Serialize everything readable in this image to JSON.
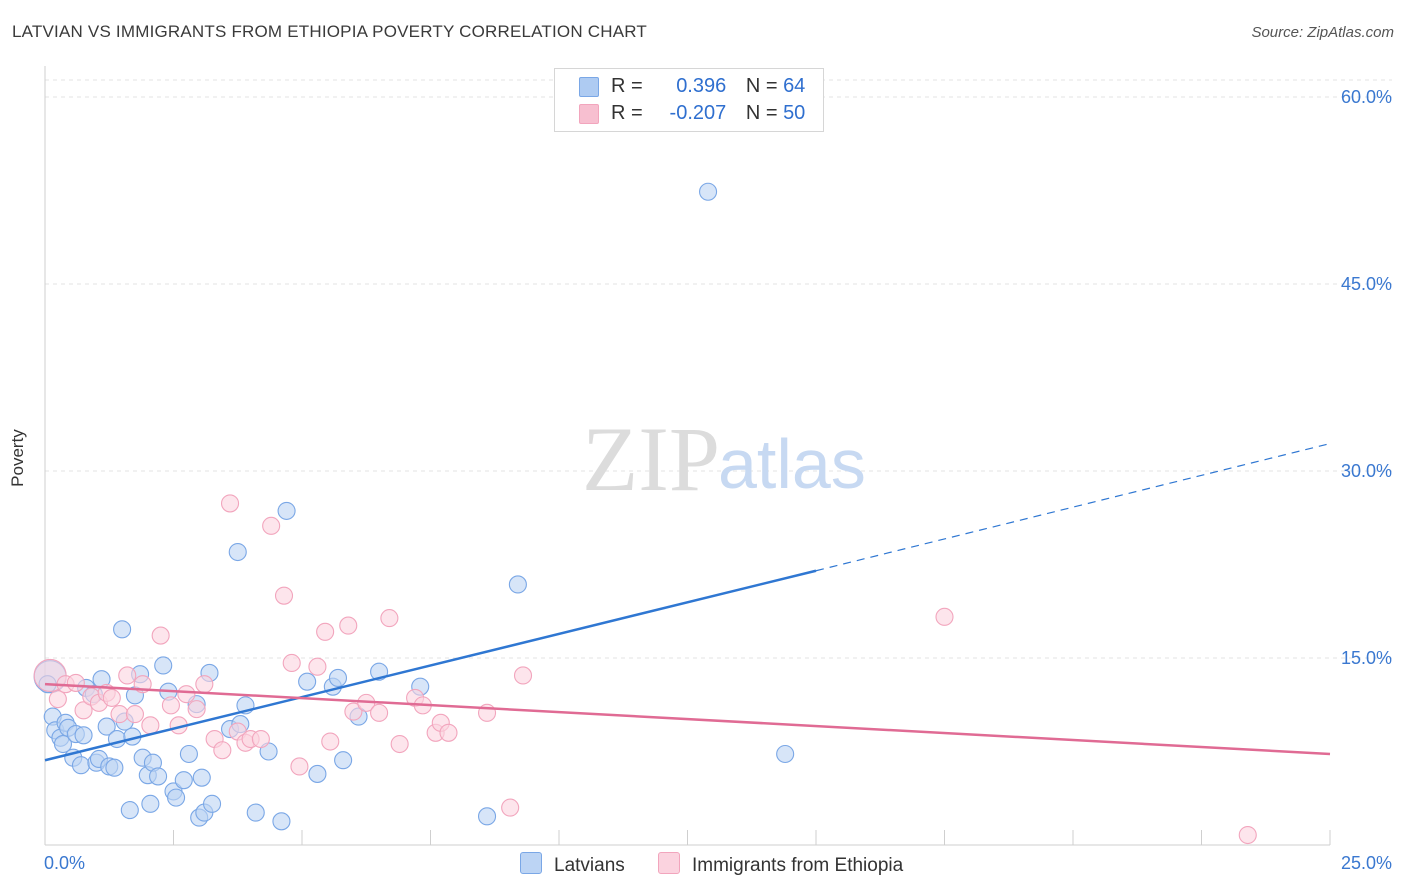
{
  "header": {
    "title": "LATVIAN VS IMMIGRANTS FROM ETHIOPIA POVERTY CORRELATION CHART",
    "source": "Source: ZipAtlas.com"
  },
  "watermark": {
    "zip": "ZIP",
    "atlas": "atlas"
  },
  "stats": [
    {
      "r_label": "R =",
      "r_value": "0.396",
      "n_label": "N =",
      "n_value": "64",
      "color": "#aecbf2"
    },
    {
      "r_label": "R =",
      "r_value": "-0.207",
      "n_label": "N =",
      "n_value": "50",
      "color": "#f7bfd0"
    }
  ],
  "chart_data": {
    "type": "scatter",
    "title": "LATVIAN VS IMMIGRANTS FROM ETHIOPIA POVERTY CORRELATION CHART",
    "xlabel": "",
    "ylabel": "Poverty",
    "xlim": [
      0,
      25
    ],
    "ylim": [
      0,
      60
    ],
    "x_tick_labels": [
      "0.0%",
      "25.0%"
    ],
    "y_tick_labels": [
      "15.0%",
      "30.0%",
      "45.0%",
      "60.0%"
    ],
    "y_ticks": [
      15,
      30,
      45,
      60
    ],
    "grid": true,
    "legend_position": "bottom-center",
    "series": [
      {
        "name": "Latvians",
        "color": "#7aa7e6",
        "line_color": "#2f77d2",
        "trend": {
          "x": [
            0,
            15
          ],
          "y": [
            6.8,
            22.0
          ],
          "dashed_to": [
            25,
            32.2
          ]
        },
        "points": [
          [
            0.1,
            13.5
          ],
          [
            0.15,
            10.3
          ],
          [
            0.2,
            9.2
          ],
          [
            0.3,
            8.6
          ],
          [
            0.35,
            8.1
          ],
          [
            0.4,
            9.8
          ],
          [
            0.45,
            9.4
          ],
          [
            0.55,
            7.0
          ],
          [
            0.6,
            8.9
          ],
          [
            0.7,
            6.4
          ],
          [
            0.75,
            8.8
          ],
          [
            0.8,
            12.6
          ],
          [
            0.95,
            12.1
          ],
          [
            1.0,
            6.6
          ],
          [
            1.05,
            6.9
          ],
          [
            1.1,
            13.3
          ],
          [
            1.2,
            9.5
          ],
          [
            1.25,
            6.3
          ],
          [
            1.35,
            6.2
          ],
          [
            1.4,
            8.5
          ],
          [
            1.5,
            17.3
          ],
          [
            1.55,
            9.9
          ],
          [
            1.65,
            2.8
          ],
          [
            1.7,
            8.7
          ],
          [
            1.75,
            12.0
          ],
          [
            1.85,
            13.7
          ],
          [
            1.9,
            7.0
          ],
          [
            2.0,
            5.6
          ],
          [
            2.05,
            3.3
          ],
          [
            2.1,
            6.6
          ],
          [
            2.2,
            5.5
          ],
          [
            2.3,
            14.4
          ],
          [
            2.4,
            12.3
          ],
          [
            2.5,
            4.3
          ],
          [
            2.55,
            3.8
          ],
          [
            2.7,
            5.2
          ],
          [
            2.8,
            7.3
          ],
          [
            2.95,
            11.3
          ],
          [
            3.0,
            2.2
          ],
          [
            3.05,
            5.4
          ],
          [
            3.1,
            2.6
          ],
          [
            3.2,
            13.8
          ],
          [
            3.25,
            3.3
          ],
          [
            3.6,
            9.3
          ],
          [
            3.75,
            23.5
          ],
          [
            3.8,
            9.7
          ],
          [
            3.9,
            11.2
          ],
          [
            4.1,
            2.6
          ],
          [
            4.35,
            7.5
          ],
          [
            4.6,
            1.9
          ],
          [
            4.7,
            26.8
          ],
          [
            5.1,
            13.1
          ],
          [
            5.3,
            5.7
          ],
          [
            5.6,
            12.7
          ],
          [
            5.7,
            13.4
          ],
          [
            5.8,
            6.8
          ],
          [
            6.1,
            10.3
          ],
          [
            6.5,
            13.9
          ],
          [
            7.3,
            12.7
          ],
          [
            8.6,
            2.3
          ],
          [
            9.2,
            20.9
          ],
          [
            12.9,
            52.4
          ],
          [
            14.4,
            7.3
          ],
          [
            0.05,
            12.9
          ]
        ]
      },
      {
        "name": "Immigrants from Ethiopia",
        "color": "#f2a5bd",
        "line_color": "#e06b94",
        "trend": {
          "x": [
            0,
            25
          ],
          "y": [
            12.9,
            7.3
          ]
        },
        "points": [
          [
            0.1,
            13.6
          ],
          [
            0.25,
            11.7
          ],
          [
            0.4,
            12.9
          ],
          [
            0.6,
            13.0
          ],
          [
            0.75,
            10.8
          ],
          [
            0.9,
            11.9
          ],
          [
            1.05,
            11.4
          ],
          [
            1.2,
            12.2
          ],
          [
            1.3,
            11.8
          ],
          [
            1.45,
            10.5
          ],
          [
            1.6,
            13.6
          ],
          [
            1.75,
            10.5
          ],
          [
            1.9,
            12.9
          ],
          [
            2.05,
            9.6
          ],
          [
            2.25,
            16.8
          ],
          [
            2.45,
            11.2
          ],
          [
            2.6,
            9.6
          ],
          [
            2.75,
            12.1
          ],
          [
            2.95,
            10.9
          ],
          [
            3.1,
            12.9
          ],
          [
            3.3,
            8.5
          ],
          [
            3.45,
            7.6
          ],
          [
            3.6,
            27.4
          ],
          [
            3.75,
            9.1
          ],
          [
            3.9,
            8.2
          ],
          [
            4.0,
            8.5
          ],
          [
            4.2,
            8.5
          ],
          [
            4.4,
            25.6
          ],
          [
            4.65,
            20.0
          ],
          [
            4.8,
            14.6
          ],
          [
            4.95,
            6.3
          ],
          [
            5.3,
            14.3
          ],
          [
            5.45,
            17.1
          ],
          [
            5.55,
            8.3
          ],
          [
            5.9,
            17.6
          ],
          [
            6.0,
            10.7
          ],
          [
            6.25,
            11.4
          ],
          [
            6.5,
            10.6
          ],
          [
            6.7,
            18.2
          ],
          [
            6.9,
            8.1
          ],
          [
            7.2,
            11.8
          ],
          [
            7.35,
            11.2
          ],
          [
            7.6,
            9.0
          ],
          [
            7.7,
            9.8
          ],
          [
            7.85,
            9.0
          ],
          [
            8.6,
            10.6
          ],
          [
            9.05,
            3.0
          ],
          [
            9.3,
            13.6
          ],
          [
            17.5,
            18.3
          ],
          [
            23.4,
            0.8
          ]
        ]
      }
    ]
  },
  "legend": {
    "items": [
      {
        "label": "Latvians",
        "color": "#bcd4f4",
        "border": "#7aa7e6"
      },
      {
        "label": "Immigrants from Ethiopia",
        "color": "#fbd3df",
        "border": "#f2a5bd"
      }
    ]
  }
}
